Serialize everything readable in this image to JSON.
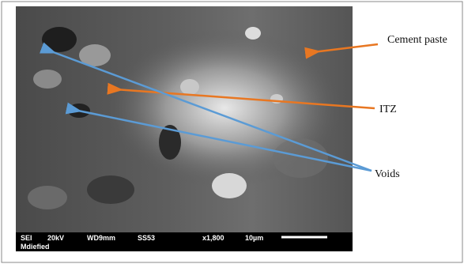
{
  "labels": {
    "cement_paste": "Cement paste",
    "itz": "ITZ",
    "voids": "Voids"
  },
  "info_bar": {
    "detector": "SEI",
    "voltage": "20kV",
    "working_distance": "WD9mm",
    "spot_size": "SS53",
    "magnification": "x1,800",
    "scale": "10µm",
    "note": "Mdiefied"
  }
}
